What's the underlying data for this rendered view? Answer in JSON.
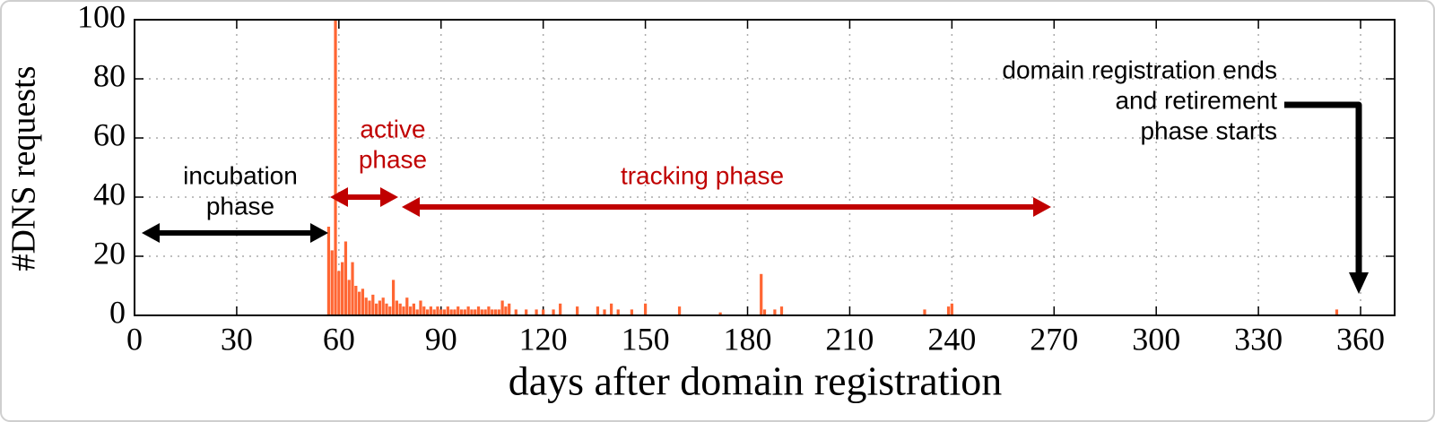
{
  "chart_data": {
    "type": "bar",
    "xlabel": "days after domain registration",
    "ylabel": "#DNS requests",
    "x": [
      57,
      58,
      59,
      60,
      61,
      62,
      63,
      64,
      65,
      66,
      67,
      68,
      69,
      70,
      71,
      72,
      73,
      74,
      75,
      76,
      77,
      78,
      79,
      80,
      81,
      82,
      83,
      84,
      85,
      86,
      87,
      88,
      89,
      90,
      91,
      92,
      93,
      94,
      95,
      96,
      97,
      98,
      99,
      100,
      101,
      102,
      103,
      104,
      105,
      106,
      107,
      108,
      109,
      110,
      112,
      115,
      118,
      120,
      123,
      125,
      130,
      136,
      138,
      140,
      142,
      146,
      150,
      160,
      172,
      184,
      185,
      188,
      190,
      232,
      239,
      240,
      353
    ],
    "values": [
      30,
      22,
      100,
      15,
      18,
      25,
      12,
      18,
      10,
      8,
      9,
      6,
      5,
      7,
      4,
      5,
      6,
      4,
      3,
      12,
      5,
      4,
      3,
      6,
      3,
      4,
      2,
      5,
      3,
      2,
      3,
      2,
      3,
      2,
      2,
      3,
      2,
      2,
      3,
      2,
      2,
      3,
      2,
      2,
      3,
      2,
      2,
      3,
      2,
      2,
      2,
      5,
      3,
      4,
      2,
      2,
      2,
      2,
      2,
      4,
      3,
      3,
      2,
      4,
      2,
      2,
      4,
      3,
      1,
      14,
      2,
      2,
      3,
      2,
      3,
      4,
      2
    ],
    "color": "#ff6633",
    "xlim": [
      0,
      370
    ],
    "xticks": [
      0,
      30,
      60,
      90,
      120,
      150,
      180,
      210,
      240,
      270,
      300,
      330,
      360
    ],
    "ylim": [
      0,
      100
    ],
    "yticks": [
      0,
      20,
      40,
      60,
      80,
      100
    ],
    "grid": true,
    "annotations": [
      {
        "lines": [
          "incubation",
          "phase"
        ],
        "color": "#000000"
      },
      {
        "lines": [
          "active",
          "phase"
        ],
        "color": "#c00000"
      },
      {
        "lines": [
          "tracking phase"
        ],
        "color": "#c00000"
      },
      {
        "lines": [
          "domain registration ends",
          "and retirement",
          "phase starts"
        ],
        "color": "#000000"
      }
    ]
  }
}
